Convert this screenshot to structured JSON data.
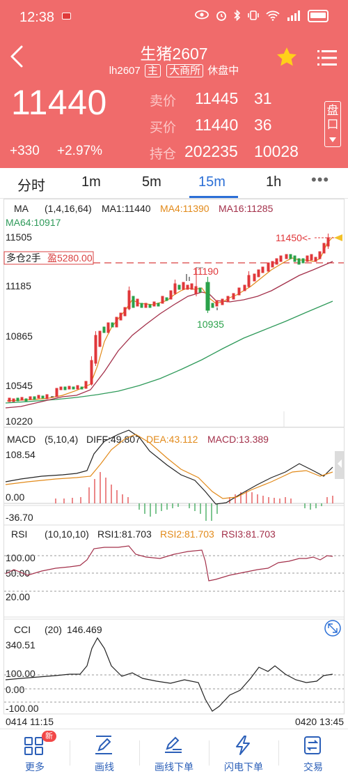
{
  "status": {
    "time": "12:38"
  },
  "header": {
    "title": "生猪2607",
    "code": "lh2607",
    "tag_main": "主",
    "exchange": "大商所",
    "state": "休盘中"
  },
  "quote": {
    "last": "11440",
    "change": "+330",
    "change_pct": "+2.97%",
    "ask_label": "卖价",
    "ask": "11445",
    "ask_vol": "31",
    "bid_label": "买价",
    "bid": "11440",
    "bid_vol": "36",
    "oi_label": "持仓",
    "oi": "202235",
    "oi_chg": "10028",
    "pankou": "盘口"
  },
  "tabs": [
    "分时",
    "1m",
    "5m",
    "15m",
    "1h"
  ],
  "active_tab": "15m",
  "more_tabs": "•••",
  "kline": {
    "ma_title": "MA",
    "ma_params": "(1,4,16,64)",
    "ma1": "MA1:11440",
    "ma4": "MA4:11390",
    "ma16": "MA16:11285",
    "ma64": "MA64:10917",
    "y_labels": [
      "11505",
      "11185",
      "10865",
      "10545",
      "10220"
    ],
    "position_label": "多仓2手",
    "profit_label": "盈5280.00",
    "high_mark": "11450<-",
    "local_high": "11190",
    "local_low": "10935"
  },
  "macd": {
    "title": "MACD",
    "params": "(5,10,4)",
    "diff": "DIFF:49.807",
    "dea": "DEA:43.112",
    "macd": "MACD:13.389",
    "y_labels": [
      "108.54",
      "0.00",
      "-36.70"
    ]
  },
  "rsi": {
    "title": "RSI",
    "params": "(10,10,10)",
    "rsi1": "RSI1:81.703",
    "rsi2": "RSI2:81.703",
    "rsi3": "RSI3:81.703",
    "y_labels": [
      "100.00",
      "50.00",
      "20.00"
    ]
  },
  "cci": {
    "title": "CCI",
    "params": "(20)",
    "value": "146.469",
    "y_labels": [
      "340.51",
      "100.00",
      "0.00",
      "-100.00"
    ]
  },
  "time_axis": {
    "start": "0414 11:15",
    "end": "0420 13:45"
  },
  "colors": {
    "header": "#f06b6b",
    "up": "#e0373a",
    "down": "#2aa14a",
    "ma4": "#e28a1a",
    "ma16": "#a3304a",
    "ma64": "#2f9a5a",
    "accent": "#2b6fd6"
  },
  "bottom_nav": [
    {
      "label": "更多",
      "icon": "grid-icon",
      "badge": "新"
    },
    {
      "label": "画线",
      "icon": "pen-icon"
    },
    {
      "label": "画线下单",
      "icon": "edit-line-icon"
    },
    {
      "label": "闪电下单",
      "icon": "lightning-icon"
    },
    {
      "label": "交易",
      "icon": "trade-icon"
    }
  ]
}
